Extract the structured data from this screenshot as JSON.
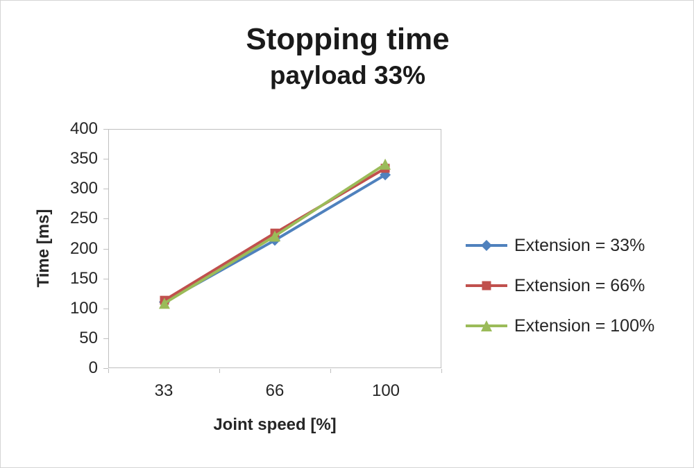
{
  "chart_data": {
    "type": "line",
    "title": "Stopping time",
    "subtitle": "payload 33%",
    "xlabel": "Joint speed [%]",
    "ylabel": "Time [ms]",
    "categories": [
      "33",
      "66",
      "100"
    ],
    "series": [
      {
        "name": "Extension = 33%",
        "color": "#4F81BD",
        "marker": "diamond",
        "values": [
          110,
          214,
          324
        ]
      },
      {
        "name": "Extension = 66%",
        "color": "#C0504D",
        "marker": "square",
        "values": [
          113,
          226,
          335
        ]
      },
      {
        "name": "Extension = 100%",
        "color": "#9BBB59",
        "marker": "triangle",
        "values": [
          108,
          221,
          342
        ]
      }
    ],
    "ylim": [
      0,
      400
    ],
    "ytick_step": 50,
    "grid": false,
    "legend_position": "right",
    "text_color": "#262626",
    "axis_line_color": "#bfbfbf"
  }
}
